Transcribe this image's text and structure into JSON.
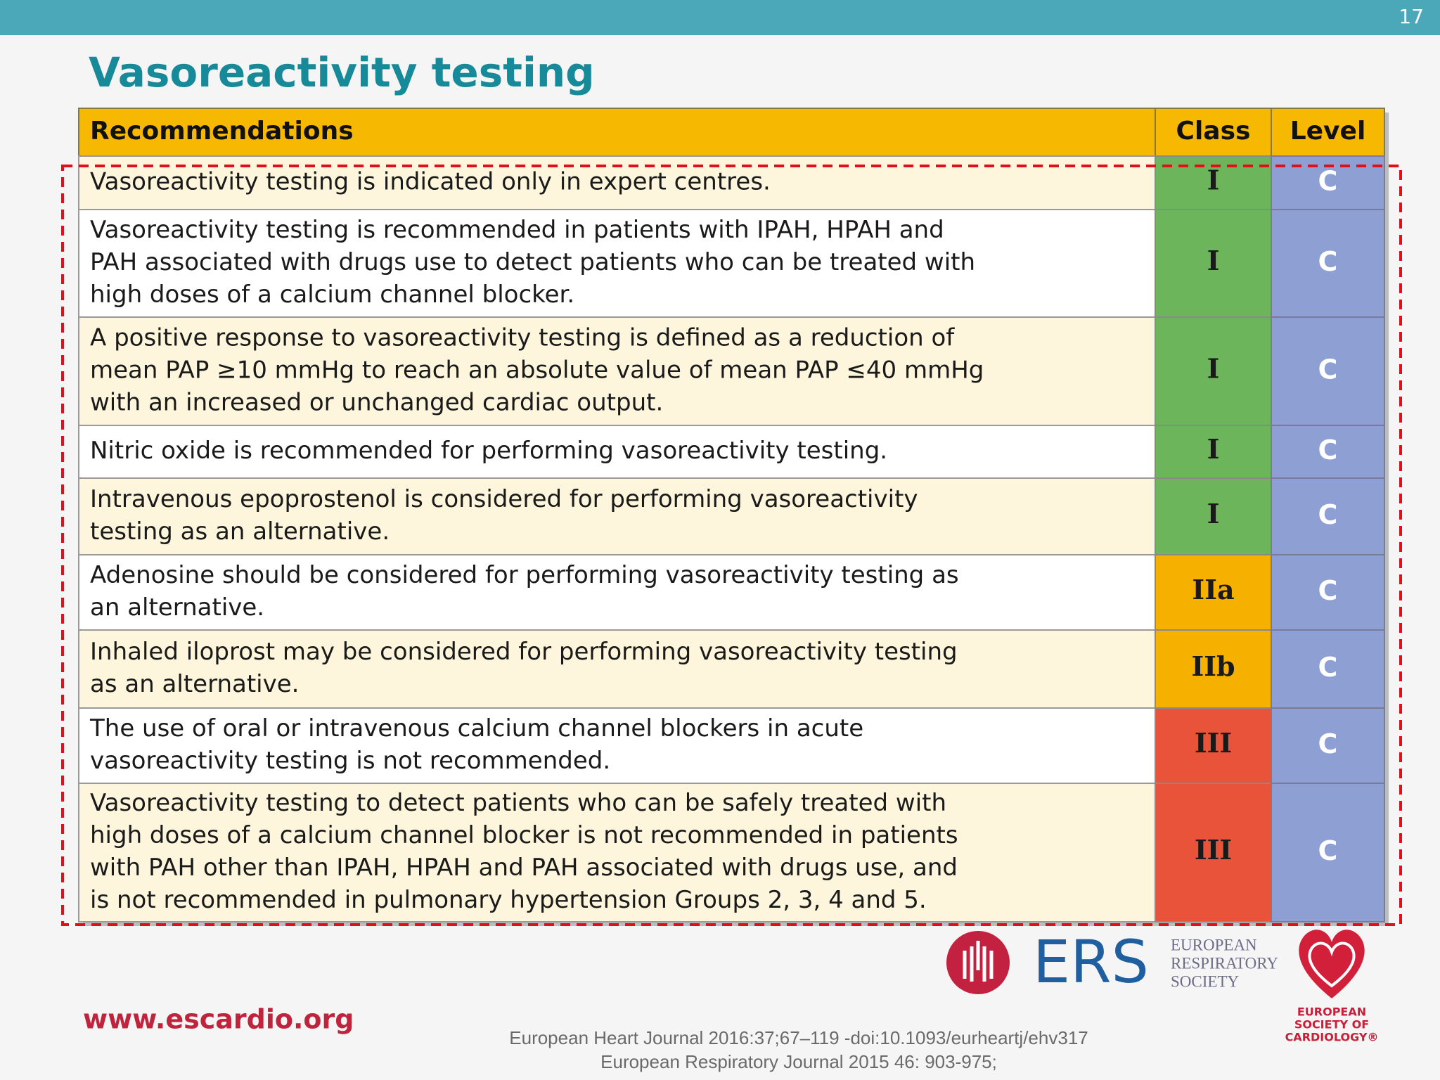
{
  "slide_number": "17",
  "title": "Vasoreactivity testing",
  "table": {
    "header": [
      "Recommendations",
      "Class",
      "Level"
    ],
    "rows": [
      {
        "text": [
          "Vasoreactivity testing is indicated only in expert centres."
        ],
        "class": "I",
        "level": "C"
      },
      {
        "text": [
          "Vasoreactivity testing is recommended in patients with IPAH, HPAH and",
          "PAH associated with drugs use to detect patients who can be treated with",
          "high doses of a calcium channel blocker."
        ],
        "class": "I",
        "level": "C"
      },
      {
        "text": [
          "A positive response to vasoreactivity testing is defined as a reduction of",
          "mean PAP ≥10 mmHg to reach an absolute value of mean PAP ≤40 mmHg",
          "with an increased or unchanged cardiac output."
        ],
        "class": "I",
        "level": "C"
      },
      {
        "text": [
          "Nitric oxide is recommended for performing vasoreactivity testing."
        ],
        "class": "I",
        "level": "C"
      },
      {
        "text": [
          "Intravenous epoprostenol is considered for performing vasoreactivity",
          "testing as an alternative."
        ],
        "class": "I",
        "level": "C"
      },
      {
        "text": [
          "Adenosine should be considered for performing vasoreactivity testing as",
          "an alternative."
        ],
        "class": "IIa",
        "level": "C"
      },
      {
        "text": [
          "Inhaled iloprost may be considered for performing vasoreactivity testing",
          "as an alternative."
        ],
        "class": "IIb",
        "level": "C"
      },
      {
        "text": [
          "The use of oral or intravenous calcium channel blockers in acute",
          "vasoreactivity testing is not recommended."
        ],
        "class": "III",
        "level": "C"
      },
      {
        "text": [
          "Vasoreactivity testing to detect patients who can be safely treated with",
          "high doses of a calcium channel blocker is not recommended in patients",
          "with PAH other than IPAH, HPAH and PAH associated with drugs use, and",
          "is not recommended in pulmonary hypertension Groups 2, 3, 4 and 5."
        ],
        "class": "III",
        "level": "C"
      }
    ]
  },
  "footer": {
    "website": "www.escardio.org",
    "citations": [
      "European Heart Journal 2016:37;67–119 -doi:10.1093/eurheartj/ehv317",
      "European Respiratory Journal 2015 46: 903-975;"
    ],
    "ers_logo": "ERS",
    "ers_name": [
      "EUROPEAN",
      "RESPIRATORY",
      "SOCIETY"
    ],
    "esc_name": [
      "EUROPEAN",
      "SOCIETY OF",
      "CARDIOLOGY®"
    ]
  }
}
